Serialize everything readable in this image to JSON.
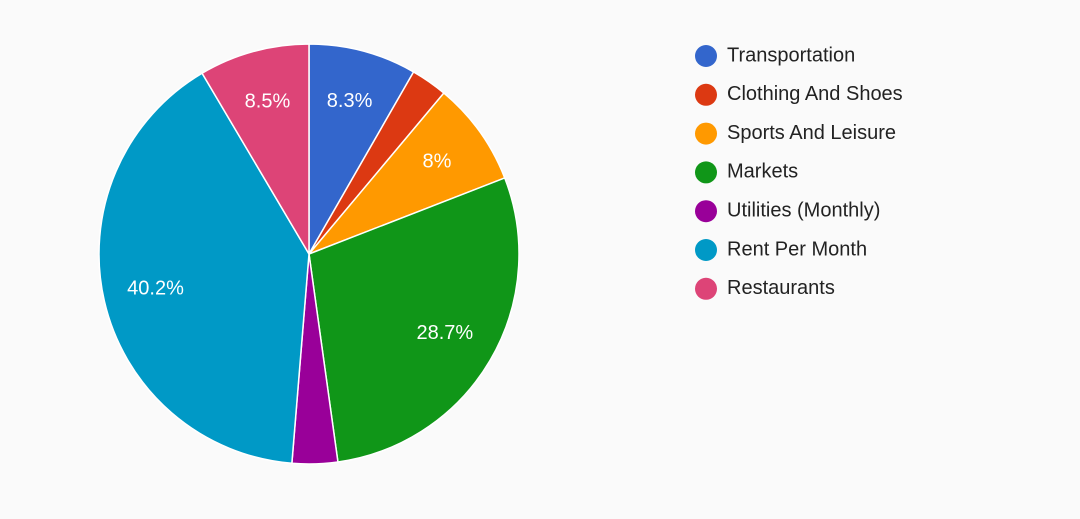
{
  "chart_data": {
    "type": "pie",
    "categories": [
      "Transportation",
      "Clothing And Shoes",
      "Sports And Leisure",
      "Markets",
      "Utilities (Monthly)",
      "Rent Per Month",
      "Restaurants"
    ],
    "values": [
      8.3,
      2.8,
      8,
      28.7,
      3.5,
      40.2,
      8.5
    ],
    "value_labels": [
      "8.3%",
      null,
      "8%",
      "28.7%",
      null,
      "40.2%",
      "8.5%"
    ],
    "colors": [
      "#3366cc",
      "#dc3912",
      "#ff9900",
      "#109618",
      "#990099",
      "#0099c6",
      "#dd4477"
    ],
    "legend": "right"
  }
}
